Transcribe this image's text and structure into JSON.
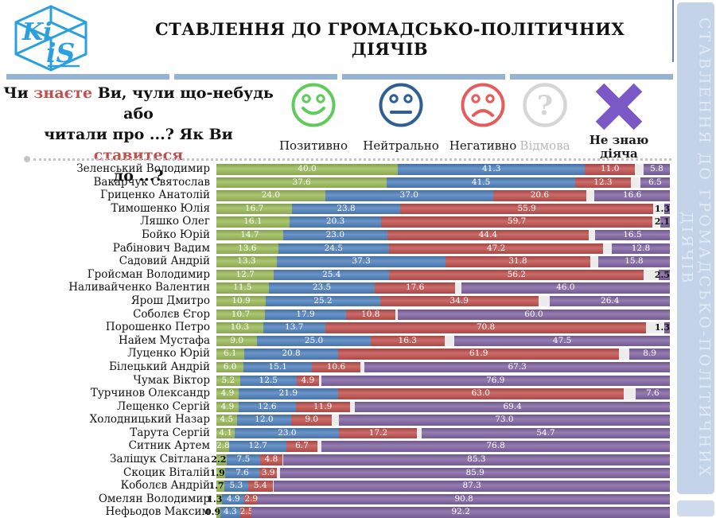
{
  "logo": {
    "letters_top": "Ki",
    "letters_bottom": "iS"
  },
  "header": {
    "title": "СТАВЛЕННЯ ДО ГРОМАДСЬКО-ПОЛІТИЧНИХ ДІЯЧІВ"
  },
  "question": {
    "l1a": "Чи ",
    "know": "знаєте",
    "l1b": " Ви, чули що-небудь або",
    "l2a": "читали про ...? Як Ви ",
    "attitude": "ставитеся",
    "l3": "до ...?"
  },
  "legend": {
    "items": [
      {
        "name": "positive",
        "label": "Позитивно",
        "color": "#5ecb5a",
        "icon": "smiley-happy-icon"
      },
      {
        "name": "neutral",
        "label": "Нейтрально",
        "color": "#2e5f94",
        "icon": "smiley-neutral-icon"
      },
      {
        "name": "negative",
        "label": "Негативно",
        "color": "#e65b5b",
        "icon": "smiley-sad-icon"
      },
      {
        "name": "refusal",
        "label": "Відмова",
        "color": "#d6d6d6",
        "icon": "question-mark-icon"
      },
      {
        "name": "dont_know",
        "label": "Не знаю діяча",
        "color": "#7a58c5",
        "icon": "x-mark-icon"
      }
    ]
  },
  "sidebar": {
    "line1": "СТАВЛЕННЯ ДО ГРОМАДСЬКО-ПОЛІТИЧНИХ",
    "line2": "ДІЯЧІВ"
  },
  "chart_data": {
    "type": "bar",
    "orientation": "horizontal",
    "stacked": true,
    "unit": "percent",
    "xlim": [
      0,
      100
    ],
    "series_names": [
      "Позитивно",
      "Нейтрально",
      "Негативно",
      "Відмова",
      "Не знаю діяча"
    ],
    "colors": {
      "positive": "#9bbb59",
      "neutral": "#4f81bd",
      "negative": "#c0504d",
      "refusal": "#ececec",
      "dont_know": "#8064a2"
    },
    "note": "refusal segments are unlabeled in the figure; values inferred as 100 minus labeled sum",
    "rows": [
      {
        "name": "Зеленський Володимир",
        "positive": 40.0,
        "neutral": 41.3,
        "negative": 11.0,
        "refusal": 1.9,
        "dont_know": 5.8
      },
      {
        "name": "Вакарчук Святослав",
        "positive": 37.6,
        "neutral": 41.5,
        "negative": 12.3,
        "refusal": 2.1,
        "dont_know": 6.5
      },
      {
        "name": "Гриценко Анатолій",
        "positive": 24.0,
        "neutral": 37.0,
        "negative": 20.6,
        "refusal": 1.8,
        "dont_know": 16.6
      },
      {
        "name": "Тимошенко Юлія",
        "positive": 16.7,
        "neutral": 23.8,
        "negative": 55.9,
        "refusal": 2.3,
        "dont_know": 1.3
      },
      {
        "name": "Ляшко Олег",
        "positive": 16.1,
        "neutral": 20.3,
        "negative": 59.7,
        "refusal": 1.8,
        "dont_know": 2.1
      },
      {
        "name": "Бойко Юрій",
        "positive": 14.7,
        "neutral": 23.0,
        "negative": 44.4,
        "refusal": 1.4,
        "dont_know": 16.5
      },
      {
        "name": "Рабінович Вадим",
        "positive": 13.6,
        "neutral": 24.5,
        "negative": 47.2,
        "refusal": 1.9,
        "dont_know": 12.8
      },
      {
        "name": "Садовий Андрій",
        "positive": 13.3,
        "neutral": 37.3,
        "negative": 31.8,
        "refusal": 1.8,
        "dont_know": 15.8
      },
      {
        "name": "Гройсман Володимир",
        "positive": 12.7,
        "neutral": 25.4,
        "negative": 56.2,
        "refusal": 3.2,
        "dont_know": 2.5
      },
      {
        "name": "Наливайченко Валентин",
        "positive": 11.5,
        "neutral": 23.5,
        "negative": 17.6,
        "refusal": 1.4,
        "dont_know": 46.0
      },
      {
        "name": "Ярош Дмитро",
        "positive": 10.9,
        "neutral": 25.2,
        "negative": 34.9,
        "refusal": 2.6,
        "dont_know": 26.4
      },
      {
        "name": "Соболєв Єгор",
        "positive": 10.7,
        "neutral": 17.9,
        "negative": 10.8,
        "refusal": 0.6,
        "dont_know": 60.0
      },
      {
        "name": "Порошенко Петро",
        "positive": 10.3,
        "neutral": 13.7,
        "negative": 70.8,
        "refusal": 3.9,
        "dont_know": 1.3
      },
      {
        "name": "Найем Мустафа",
        "positive": 9.0,
        "neutral": 25.0,
        "negative": 16.3,
        "refusal": 2.2,
        "dont_know": 47.5
      },
      {
        "name": "Луценко Юрій",
        "positive": 6.1,
        "neutral": 20.8,
        "negative": 61.9,
        "refusal": 2.3,
        "dont_know": 8.9
      },
      {
        "name": "Білецький Андрій",
        "positive": 6.0,
        "neutral": 15.1,
        "negative": 10.6,
        "refusal": 1.0,
        "dont_know": 67.3
      },
      {
        "name": "Чумак Віктор",
        "positive": 5.2,
        "neutral": 12.5,
        "negative": 4.9,
        "refusal": 0.5,
        "dont_know": 76.9
      },
      {
        "name": "Турчинов Олександр",
        "positive": 4.9,
        "neutral": 21.9,
        "negative": 63.0,
        "refusal": 2.6,
        "dont_know": 7.6
      },
      {
        "name": "Лещенко Сергій",
        "positive": 4.9,
        "neutral": 12.6,
        "negative": 11.9,
        "refusal": 1.2,
        "dont_know": 69.4
      },
      {
        "name": "Холодницький Назар",
        "positive": 4.5,
        "neutral": 12.0,
        "negative": 9.0,
        "refusal": 1.5,
        "dont_know": 73.0
      },
      {
        "name": "Тарута Сергій",
        "positive": 4.1,
        "neutral": 23.0,
        "negative": 17.2,
        "refusal": 1.0,
        "dont_know": 54.7
      },
      {
        "name": "Ситник Артем",
        "positive": 2.8,
        "neutral": 12.7,
        "negative": 6.7,
        "refusal": 1.0,
        "dont_know": 76.8
      },
      {
        "name": "Заліщук Світлана",
        "positive": 2.2,
        "neutral": 7.5,
        "negative": 4.8,
        "refusal": 0.2,
        "dont_know": 85.3
      },
      {
        "name": "Скоцик Віталій",
        "positive": 1.9,
        "neutral": 7.6,
        "negative": 3.9,
        "refusal": 0.7,
        "dont_know": 85.9
      },
      {
        "name": "Коболєв Андрій",
        "positive": 1.7,
        "neutral": 5.3,
        "negative": 5.4,
        "refusal": 0.3,
        "dont_know": 87.3
      },
      {
        "name": "Омелян Володимир",
        "positive": 1.3,
        "neutral": 4.9,
        "negative": 2.9,
        "refusal": 0.1,
        "dont_know": 90.8
      },
      {
        "name": "Нефьодов Максим",
        "positive": 0.9,
        "neutral": 4.3,
        "negative": 2.5,
        "refusal": 0.1,
        "dont_know": 92.2
      }
    ]
  }
}
